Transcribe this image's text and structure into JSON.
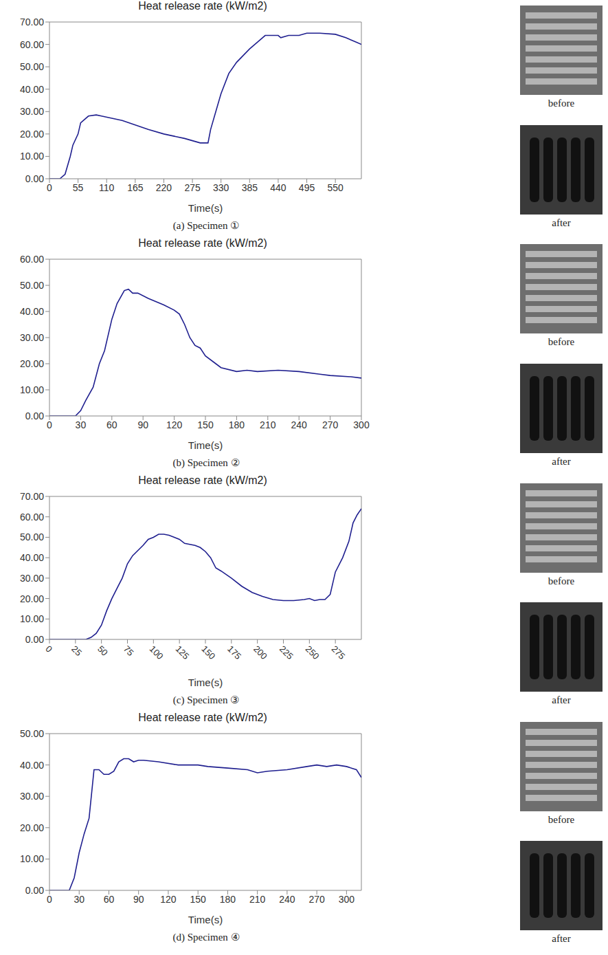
{
  "chart_data": [
    {
      "type": "line",
      "title": "Heat release rate (kW/m2)",
      "caption": "(a) Specimen ①",
      "x_label": "Time(s)",
      "color": "#1f1f8f",
      "grid": false,
      "x": [
        0,
        20,
        30,
        40,
        45,
        55,
        60,
        65,
        75,
        90,
        100,
        120,
        140,
        165,
        190,
        220,
        240,
        260,
        275,
        290,
        305,
        310,
        320,
        330,
        345,
        360,
        385,
        400,
        415,
        440,
        445,
        460,
        480,
        495,
        520,
        550,
        570,
        590,
        600
      ],
      "values": [
        0,
        0,
        2,
        10,
        15,
        20,
        25,
        26,
        28,
        28.5,
        28,
        27,
        26,
        24,
        22,
        20,
        19,
        18,
        17,
        16,
        16,
        22,
        30,
        38,
        47,
        52,
        58,
        61,
        64,
        64,
        63,
        64,
        64,
        65,
        65,
        64.5,
        63,
        61,
        60
      ],
      "xlim": [
        0,
        600
      ],
      "xticks": [
        0,
        55,
        110,
        165,
        220,
        275,
        330,
        385,
        440,
        495,
        550
      ],
      "ylim": [
        0,
        70
      ],
      "yticks": [
        {
          "value": 0,
          "label": "0.00"
        },
        {
          "value": 10,
          "label": "10.00"
        },
        {
          "value": 20,
          "label": "20.00"
        },
        {
          "value": 30,
          "label": "30.00"
        },
        {
          "value": 40,
          "label": "40.00"
        },
        {
          "value": 50,
          "label": "50.00"
        },
        {
          "value": 60,
          "label": "60.00"
        },
        {
          "value": 70,
          "label": "70.00"
        }
      ]
    },
    {
      "type": "line",
      "title": "Heat release rate (kW/m2)",
      "caption": "(b) Specimen ②",
      "x_label": "Time(s)",
      "color": "#1f1f8f",
      "grid": false,
      "x": [
        0,
        25,
        30,
        35,
        42,
        48,
        53,
        60,
        65,
        72,
        76,
        80,
        85,
        95,
        110,
        120,
        125,
        130,
        135,
        140,
        145,
        150,
        160,
        165,
        180,
        190,
        200,
        220,
        240,
        260,
        270,
        290,
        300
      ],
      "values": [
        0,
        0,
        2,
        6,
        11,
        20,
        25,
        37,
        43,
        48,
        48.5,
        47,
        47,
        45,
        42.5,
        40.5,
        39,
        35,
        30,
        27,
        26,
        23,
        20,
        18.5,
        17,
        17.5,
        17,
        17.5,
        17,
        16,
        15.5,
        15,
        14.5
      ],
      "xlim": [
        0,
        300
      ],
      "xticks": [
        0,
        30,
        60,
        90,
        120,
        150,
        180,
        210,
        240,
        270,
        300
      ],
      "ylim": [
        0,
        60
      ],
      "yticks": [
        {
          "value": 0,
          "label": "0.00"
        },
        {
          "value": 10,
          "label": "10.00"
        },
        {
          "value": 20,
          "label": "20.00"
        },
        {
          "value": 30,
          "label": "30.00"
        },
        {
          "value": 40,
          "label": "40.00"
        },
        {
          "value": 50,
          "label": "50.00"
        },
        {
          "value": 60,
          "label": "60.00"
        }
      ]
    },
    {
      "type": "line",
      "title": "Heat release rate (kW/m2)",
      "caption": "(c) Specimen ③",
      "x_label": "Time(s)",
      "color": "#1f1f8f",
      "grid": false,
      "x": [
        0,
        35,
        40,
        45,
        50,
        55,
        60,
        65,
        70,
        75,
        80,
        90,
        95,
        100,
        105,
        110,
        115,
        125,
        130,
        140,
        145,
        150,
        155,
        160,
        165,
        175,
        185,
        195,
        205,
        215,
        225,
        235,
        245,
        250,
        255,
        260,
        265,
        270,
        275,
        282,
        288,
        292,
        296,
        300
      ],
      "values": [
        0,
        0,
        1,
        3,
        7,
        14,
        20,
        25,
        30,
        37,
        41,
        46,
        49,
        50,
        51.5,
        51.5,
        51,
        49,
        47,
        46,
        45,
        43,
        40,
        35,
        33.5,
        30,
        26,
        23,
        21,
        19.5,
        19,
        19,
        19.5,
        20,
        19,
        19.5,
        19.5,
        22,
        33,
        40,
        48,
        57,
        61,
        64
      ],
      "xlim": [
        0,
        300
      ],
      "xticks": [
        0,
        25,
        50,
        75,
        100,
        125,
        150,
        175,
        200,
        225,
        250,
        275
      ],
      "ylim": [
        0,
        70
      ],
      "yticks": [
        {
          "value": 0,
          "label": "0.00"
        },
        {
          "value": 10,
          "label": "10.00"
        },
        {
          "value": 20,
          "label": "20.00"
        },
        {
          "value": 30,
          "label": "30.00"
        },
        {
          "value": 40,
          "label": "40.00"
        },
        {
          "value": 50,
          "label": "50.00"
        },
        {
          "value": 60,
          "label": "60.00"
        },
        {
          "value": 70,
          "label": "70.00"
        }
      ]
    },
    {
      "type": "line",
      "title": "Heat release rate (kW/m2)",
      "caption": "(d) Specimen ④",
      "x_label": "Time(s)",
      "color": "#1f1f8f",
      "grid": false,
      "x": [
        0,
        20,
        25,
        30,
        35,
        40,
        45,
        50,
        55,
        60,
        65,
        70,
        75,
        80,
        85,
        90,
        95,
        110,
        130,
        150,
        160,
        180,
        200,
        210,
        220,
        240,
        260,
        270,
        280,
        290,
        300,
        305,
        310,
        315
      ],
      "values": [
        0,
        0,
        4,
        12,
        18,
        23,
        38.5,
        38.5,
        37,
        37,
        38,
        41,
        42,
        42,
        41,
        41.5,
        41.5,
        41,
        40,
        40,
        39.5,
        39,
        38.5,
        37.5,
        38,
        38.5,
        39.5,
        40,
        39.5,
        40,
        39.5,
        39,
        38.5,
        36
      ],
      "xlim": [
        0,
        315
      ],
      "xticks": [
        0,
        30,
        60,
        90,
        120,
        150,
        180,
        210,
        240,
        270,
        300
      ],
      "ylim": [
        0,
        50
      ],
      "yticks": [
        {
          "value": 0,
          "label": "0.00"
        },
        {
          "value": 10,
          "label": "10.00"
        },
        {
          "value": 20,
          "label": "20.00"
        },
        {
          "value": 30,
          "label": "30.00"
        },
        {
          "value": 40,
          "label": "40.00"
        },
        {
          "value": 50,
          "label": "50.00"
        }
      ]
    }
  ],
  "photo_labels": [
    "before",
    "after",
    "before",
    "after",
    "before",
    "after",
    "before",
    "after"
  ]
}
